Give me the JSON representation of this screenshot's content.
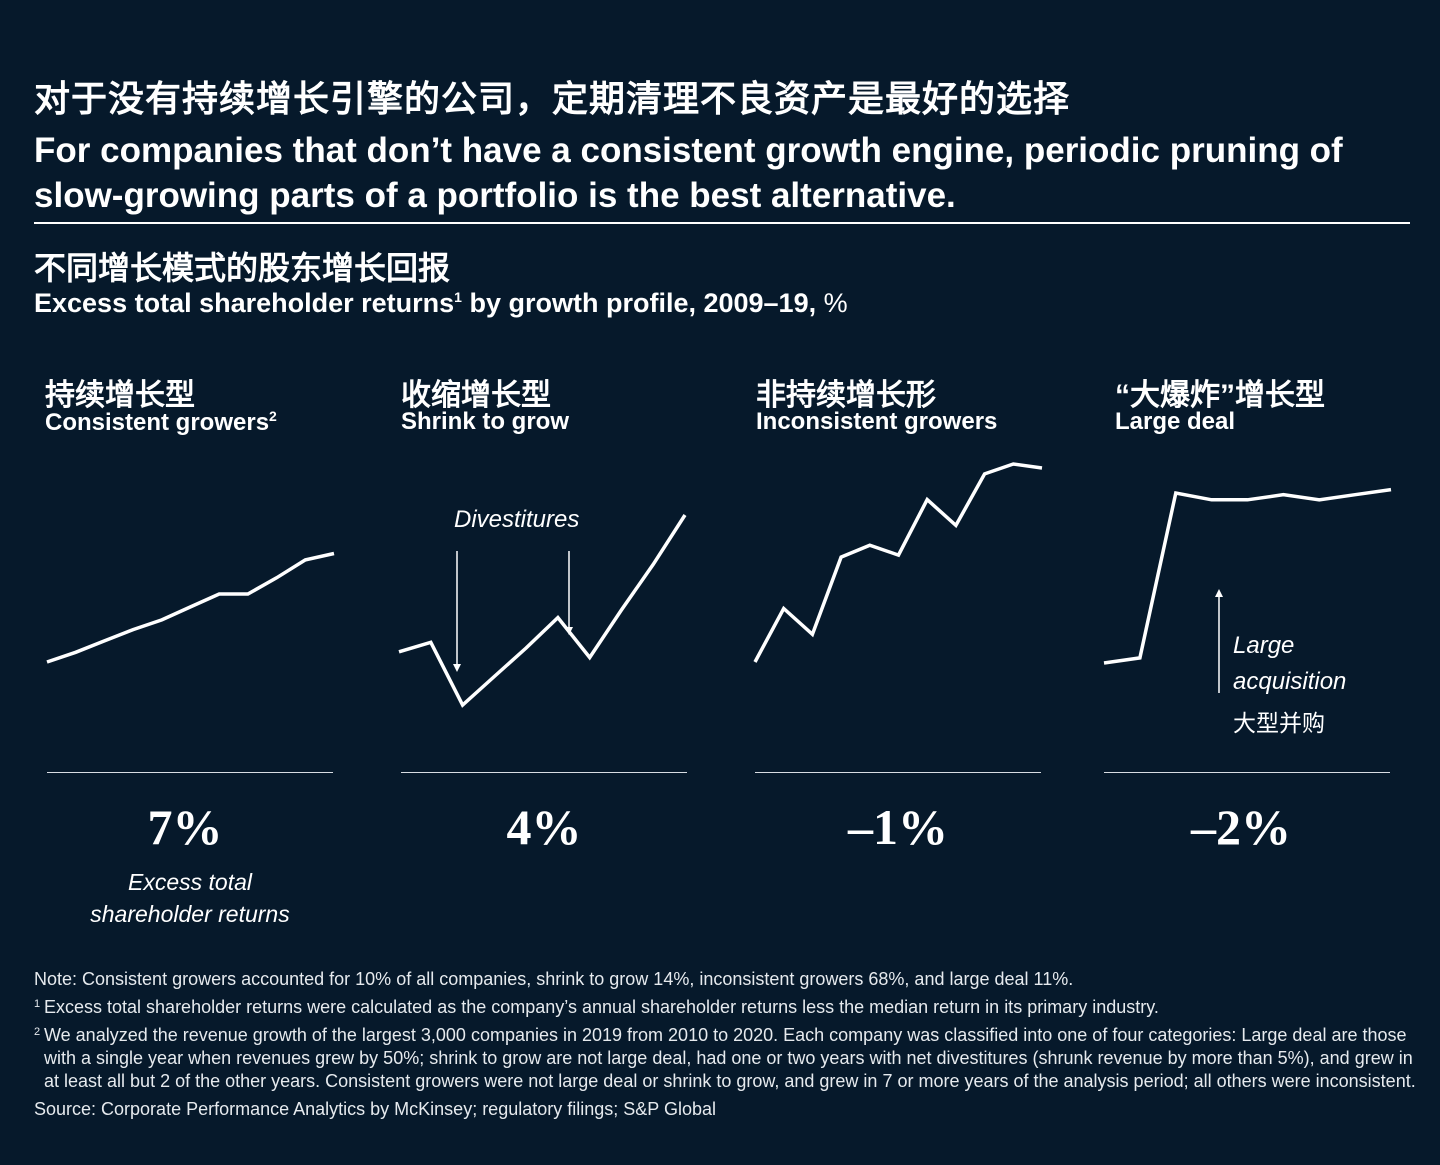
{
  "title_cn": "对于没有持续增长引擎的公司，定期清理不良资产是最好的选择",
  "title_en": "For companies that don’t have a consistent growth engine, periodic pruning of slow-growing parts of a portfolio is the best alternative.",
  "subtitle_cn": "不同增长模式的股东增长回报",
  "subtitle_en_main": "Excess total shareholder returns",
  "subtitle_en_sup": "1",
  "subtitle_en_rest": " by growth profile, 2009–19, ",
  "subtitle_unit": "%",
  "panels": [
    {
      "label_cn": "持续增长型",
      "label_en": "Consistent growers",
      "label_sup": "2",
      "value": "7%",
      "caption_line1": "Excess total",
      "caption_line2": "shareholder returns"
    },
    {
      "label_cn": "收缩增长型",
      "label_en": "Shrink to grow",
      "label_sup": "",
      "value": "4%",
      "annotation": "Divestitures"
    },
    {
      "label_cn": "非持续增长形",
      "label_en": "Inconsistent growers",
      "label_sup": "",
      "value": "–1%"
    },
    {
      "label_cn": "“大爆炸”增长型",
      "label_en": "Large deal",
      "label_sup": "",
      "value": "–2%",
      "annotation_line1": "Large",
      "annotation_line2": "acquisition",
      "annotation_cn": "大型并购"
    }
  ],
  "chart_data": [
    {
      "type": "line",
      "name": "Consistent growers",
      "total": 7,
      "unit": "%",
      "y": [
        0.0,
        0.06,
        0.13,
        0.2,
        0.26,
        0.34,
        0.42,
        0.42,
        0.52,
        0.63,
        0.67
      ]
    },
    {
      "type": "line",
      "name": "Shrink to grow",
      "total": 4,
      "unit": "%",
      "y": [
        0.28,
        0.33,
        0.0,
        0.15,
        0.3,
        0.46,
        0.25,
        0.5,
        0.74,
        1.0
      ],
      "annotations": [
        {
          "label": "Divestitures",
          "at_index": 2
        },
        {
          "label": "Divestitures",
          "at_index": 6
        }
      ]
    },
    {
      "type": "line",
      "name": "Inconsistent growers",
      "total": -1,
      "unit": "%",
      "y": [
        0.0,
        0.27,
        0.14,
        0.53,
        0.59,
        0.54,
        0.82,
        0.69,
        0.95,
        1.0,
        0.98
      ]
    },
    {
      "type": "line",
      "name": "Large deal",
      "total": -2,
      "unit": "%",
      "y": [
        0.0,
        0.03,
        1.0,
        0.96,
        0.96,
        0.99,
        0.96,
        0.99,
        1.02
      ],
      "annotations": [
        {
          "label": "Large acquisition",
          "at_index": 2
        }
      ]
    }
  ],
  "notes": {
    "note": "Note: Consistent growers accounted for 10% of all companies, shrink to grow 14%, inconsistent growers 68%, and large deal 11%.",
    "fn1_mark": "1",
    "fn1": "Excess total shareholder returns were calculated as the company’s annual shareholder returns less the median return in its primary industry.",
    "fn2_mark": "2",
    "fn2": "We analyzed the revenue growth of the largest 3,000 companies in 2019 from 2010 to 2020. Each company was classified into one of four categories: Large deal are those with a single year when revenues grew by 50%; shrink to grow are not large deal, had one or two years with net divestitures (shrunk revenue by more than 5%), and grew in at least all but 2 of the other years. Consistent growers were not large deal or shrink to grow, and grew in 7 or more years of the analysis period; all others were inconsistent.",
    "source": "Source: Corporate Performance Analytics by McKinsey; regulatory filings; S&P Global"
  },
  "colors": {
    "background": "#06192b",
    "line": "#ffffff"
  }
}
